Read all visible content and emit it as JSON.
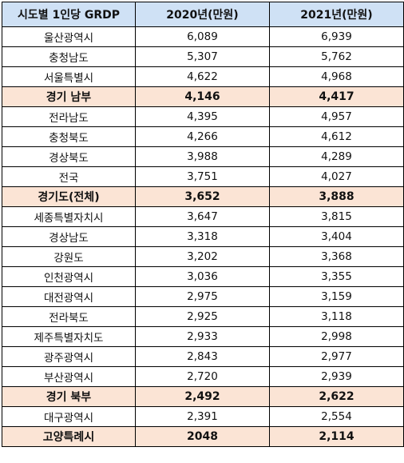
{
  "table": {
    "headers": [
      "시도별 1인당 GRDP",
      "2020년(만원)",
      "2021년(만원)"
    ],
    "rows": [
      {
        "region": "울산광역시",
        "y2020": "6,089",
        "y2021": "6,939",
        "highlight": false
      },
      {
        "region": "충청남도",
        "y2020": "5,307",
        "y2021": "5,762",
        "highlight": false
      },
      {
        "region": "서울특별시",
        "y2020": "4,622",
        "y2021": "4,968",
        "highlight": false
      },
      {
        "region": "경기 남부",
        "y2020": "4,146",
        "y2021": "4,417",
        "highlight": true
      },
      {
        "region": "전라남도",
        "y2020": "4,395",
        "y2021": "4,957",
        "highlight": false
      },
      {
        "region": "충청북도",
        "y2020": "4,266",
        "y2021": "4,612",
        "highlight": false
      },
      {
        "region": "경상북도",
        "y2020": "3,988",
        "y2021": "4,289",
        "highlight": false
      },
      {
        "region": "전국",
        "y2020": "3,751",
        "y2021": "4,027",
        "highlight": false
      },
      {
        "region": "경기도(전체)",
        "y2020": "3,652",
        "y2021": "3,888",
        "highlight": true
      },
      {
        "region": "세종특별자치시",
        "y2020": "3,647",
        "y2021": "3,815",
        "highlight": false
      },
      {
        "region": "경상남도",
        "y2020": "3,318",
        "y2021": "3,404",
        "highlight": false
      },
      {
        "region": "강원도",
        "y2020": "3,202",
        "y2021": "3,368",
        "highlight": false
      },
      {
        "region": "인천광역시",
        "y2020": "3,036",
        "y2021": "3,355",
        "highlight": false
      },
      {
        "region": "대전광역시",
        "y2020": "2,975",
        "y2021": "3,159",
        "highlight": false
      },
      {
        "region": "전라북도",
        "y2020": "2,925",
        "y2021": "3,118",
        "highlight": false
      },
      {
        "region": "제주특별자치도",
        "y2020": "2,933",
        "y2021": "2,998",
        "highlight": false
      },
      {
        "region": "광주광역시",
        "y2020": "2,843",
        "y2021": "2,977",
        "highlight": false
      },
      {
        "region": "부산광역시",
        "y2020": "2,720",
        "y2021": "2,939",
        "highlight": false
      },
      {
        "region": "경기 북부",
        "y2020": "2,492",
        "y2021": "2,622",
        "highlight": true
      },
      {
        "region": "대구광역시",
        "y2020": "2,391",
        "y2021": "2,554",
        "highlight": false
      },
      {
        "region": "고양특례시",
        "y2020": "2048",
        "y2021": "2,114",
        "highlight": true
      }
    ]
  },
  "colors": {
    "header_bg": "#cfe1f5",
    "highlight_bg": "#fbe4d5"
  }
}
